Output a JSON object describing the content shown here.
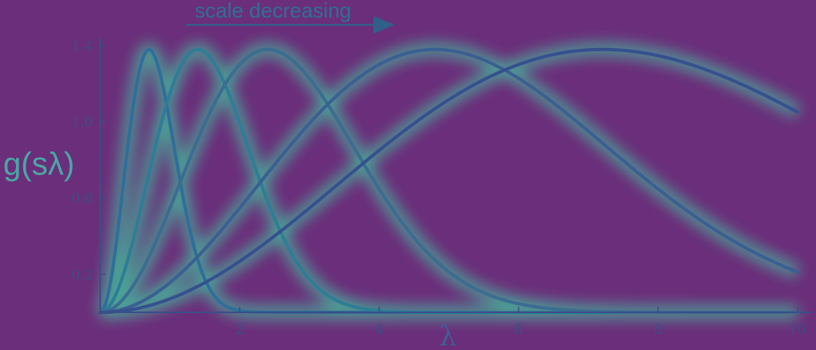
{
  "chart_data": {
    "type": "line",
    "title": "",
    "xlabel": "λ",
    "ylabel": "g(sλ)",
    "xlim": [
      0,
      10
    ],
    "ylim": [
      0,
      1.45
    ],
    "x_ticks": [
      2,
      4,
      6,
      8,
      10
    ],
    "y_ticks": [
      0.2,
      0.6,
      1.0,
      1.4
    ],
    "x_tick_labels": [
      "2",
      "4",
      "6",
      "8",
      "10"
    ],
    "y_tick_labels": [
      "0.2",
      "0.6",
      "1.0",
      "1.4"
    ],
    "grid": false,
    "legend": "none",
    "annotation": {
      "text": "scale decreasing",
      "arrow": "right"
    },
    "series": [
      {
        "peak_x": 0.7,
        "peak_y": 1.38
      },
      {
        "peak_x": 1.4,
        "peak_y": 1.38
      },
      {
        "peak_x": 2.4,
        "peak_y": 1.38
      },
      {
        "peak_x": 4.8,
        "peak_y": 1.38
      },
      {
        "peak_x": 7.2,
        "peak_y": 1.38
      }
    ],
    "colors": {
      "background": "#6b2e7a",
      "axis": "#3a4f86",
      "glow": "#3fc8a0",
      "lines": [
        "#2d6f9a",
        "#2c7e96",
        "#3a6d90",
        "#3a5f92",
        "#35508f"
      ]
    }
  }
}
